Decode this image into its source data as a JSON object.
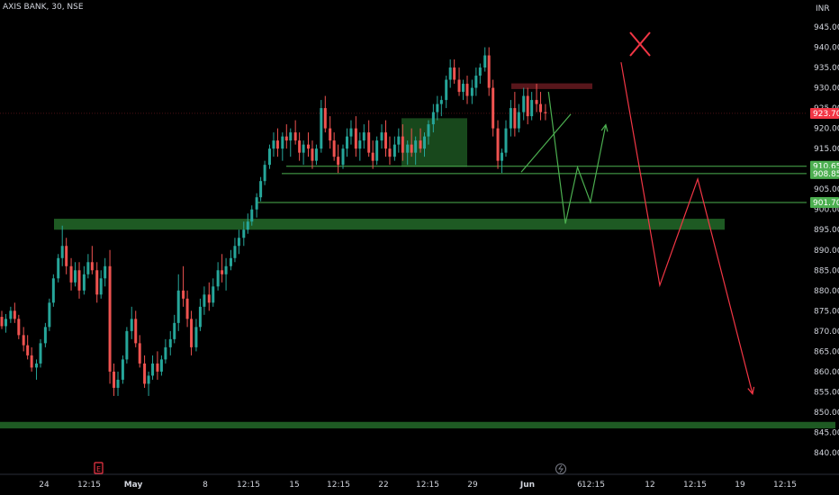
{
  "header": {
    "title": "AXIS BANK, 30, NSE"
  },
  "chart_data": {
    "type": "candlestick",
    "currency_label": "INR",
    "ylim": [
      840,
      947
    ],
    "y_ticks": [
      "945.00",
      "940.00",
      "935.00",
      "930.00",
      "925.00",
      "920.00",
      "915.00",
      "910.00",
      "905.00",
      "900.00",
      "895.00",
      "890.00",
      "885.00",
      "880.00",
      "875.00",
      "870.00",
      "865.00",
      "860.00",
      "855.00",
      "850.00",
      "845.00",
      "840.00"
    ],
    "x_ticks": [
      "24",
      "12:15",
      "May",
      "8",
      "12:15",
      "15",
      "12:15",
      "22",
      "12:15",
      "29",
      "Jun",
      "6",
      "12:15",
      "12",
      "12:15",
      "19",
      "12:15"
    ],
    "price_tags": [
      {
        "value": "923.70",
        "price": 923.7,
        "color": "#f23645"
      },
      {
        "value": "910.65",
        "price": 910.65,
        "color": "#4caf50"
      },
      {
        "value": "908.85",
        "price": 908.85,
        "color": "#4caf50"
      },
      {
        "value": "901.70",
        "price": 901.7,
        "color": "#4caf50"
      }
    ],
    "zones": [
      {
        "price_top": 897.7,
        "price_bottom": 895.0,
        "color": "#1e5a23"
      },
      {
        "price_top": 847.6,
        "price_bottom": 846.0,
        "color": "#1e5a23"
      },
      {
        "price_top": 922.5,
        "price_bottom": 910.5,
        "color": "#1e5a23"
      },
      {
        "price_top": 931.1,
        "price_bottom": 929.7,
        "color": "#6e1b22"
      }
    ],
    "series": [
      {
        "name": "",
        "color": "#4caf50",
        "path_prices": [
          929.0,
          896.5,
          910.4,
          901.8,
          920.9
        ],
        "path_x": [
          0.68,
          0.701,
          0.716,
          0.732,
          0.751
        ]
      },
      {
        "name": "",
        "color": "#f23645",
        "path_prices": [
          936.3,
          881.3,
          907.5,
          854.5
        ],
        "path_x": [
          0.77,
          0.818,
          0.865,
          0.933
        ]
      }
    ],
    "candles": [
      {
        "x": 0.0,
        "o": 873.5,
        "h": 875.0,
        "l": 870.5,
        "c": 871.2
      },
      {
        "x": 0.005,
        "o": 871.2,
        "h": 874.2,
        "l": 869.6,
        "c": 873.0
      },
      {
        "x": 0.011,
        "o": 873.0,
        "h": 876.0,
        "l": 872.0,
        "c": 875.0
      },
      {
        "x": 0.016,
        "o": 875.0,
        "h": 877.0,
        "l": 872.0,
        "c": 873.0
      },
      {
        "x": 0.021,
        "o": 873.0,
        "h": 874.0,
        "l": 868.0,
        "c": 869.0
      },
      {
        "x": 0.027,
        "o": 869.0,
        "h": 871.0,
        "l": 865.0,
        "c": 866.5
      },
      {
        "x": 0.032,
        "o": 866.5,
        "h": 869.0,
        "l": 863.0,
        "c": 864.0
      },
      {
        "x": 0.037,
        "o": 864.0,
        "h": 866.0,
        "l": 860.0,
        "c": 861.0
      },
      {
        "x": 0.043,
        "o": 861.0,
        "h": 863.0,
        "l": 858.0,
        "c": 862.0
      },
      {
        "x": 0.048,
        "o": 862.0,
        "h": 868.0,
        "l": 861.0,
        "c": 867.0
      },
      {
        "x": 0.054,
        "o": 867.0,
        "h": 872.0,
        "l": 866.0,
        "c": 871.0
      },
      {
        "x": 0.059,
        "o": 871.0,
        "h": 878.0,
        "l": 870.0,
        "c": 877.0
      },
      {
        "x": 0.064,
        "o": 877.0,
        "h": 884.0,
        "l": 876.0,
        "c": 883.0
      },
      {
        "x": 0.07,
        "o": 883.0,
        "h": 889.0,
        "l": 882.0,
        "c": 888.0
      },
      {
        "x": 0.075,
        "o": 888.0,
        "h": 896.0,
        "l": 886.0,
        "c": 891.0
      },
      {
        "x": 0.08,
        "o": 891.0,
        "h": 893.0,
        "l": 884.0,
        "c": 886.0
      },
      {
        "x": 0.086,
        "o": 886.0,
        "h": 888.0,
        "l": 880.0,
        "c": 882.0
      },
      {
        "x": 0.091,
        "o": 882.0,
        "h": 887.0,
        "l": 881.0,
        "c": 885.0
      },
      {
        "x": 0.096,
        "o": 885.0,
        "h": 887.0,
        "l": 878.0,
        "c": 880.0
      },
      {
        "x": 0.102,
        "o": 880.0,
        "h": 886.0,
        "l": 879.0,
        "c": 884.0
      },
      {
        "x": 0.107,
        "o": 884.0,
        "h": 889.0,
        "l": 883.0,
        "c": 887.0
      },
      {
        "x": 0.112,
        "o": 887.0,
        "h": 891.0,
        "l": 884.0,
        "c": 885.0
      },
      {
        "x": 0.118,
        "o": 885.0,
        "h": 887.0,
        "l": 877.0,
        "c": 879.0
      },
      {
        "x": 0.123,
        "o": 879.0,
        "h": 885.0,
        "l": 878.0,
        "c": 883.0
      },
      {
        "x": 0.128,
        "o": 883.0,
        "h": 888.0,
        "l": 881.0,
        "c": 886.0
      },
      {
        "x": 0.134,
        "o": 886.0,
        "h": 890.0,
        "l": 857.0,
        "c": 860.0
      },
      {
        "x": 0.139,
        "o": 860.0,
        "h": 862.0,
        "l": 854.0,
        "c": 856.0
      },
      {
        "x": 0.144,
        "o": 856.0,
        "h": 860.0,
        "l": 854.0,
        "c": 858.0
      },
      {
        "x": 0.15,
        "o": 858.0,
        "h": 864.0,
        "l": 857.0,
        "c": 863.0
      },
      {
        "x": 0.155,
        "o": 863.0,
        "h": 871.0,
        "l": 862.0,
        "c": 870.0
      },
      {
        "x": 0.161,
        "o": 870.0,
        "h": 876.0,
        "l": 868.0,
        "c": 873.0
      },
      {
        "x": 0.166,
        "o": 873.0,
        "h": 875.0,
        "l": 866.0,
        "c": 867.0
      },
      {
        "x": 0.171,
        "o": 867.0,
        "h": 869.0,
        "l": 861.0,
        "c": 862.0
      },
      {
        "x": 0.177,
        "o": 862.0,
        "h": 864.0,
        "l": 856.0,
        "c": 857.0
      },
      {
        "x": 0.182,
        "o": 857.0,
        "h": 860.0,
        "l": 854.0,
        "c": 859.0
      },
      {
        "x": 0.187,
        "o": 859.0,
        "h": 864.0,
        "l": 858.0,
        "c": 862.0
      },
      {
        "x": 0.193,
        "o": 862.0,
        "h": 865.0,
        "l": 858.0,
        "c": 860.0
      },
      {
        "x": 0.198,
        "o": 860.0,
        "h": 864.0,
        "l": 859.0,
        "c": 863.0
      },
      {
        "x": 0.203,
        "o": 863.0,
        "h": 868.0,
        "l": 862.0,
        "c": 866.0
      },
      {
        "x": 0.209,
        "o": 866.0,
        "h": 870.0,
        "l": 864.0,
        "c": 868.0
      },
      {
        "x": 0.214,
        "o": 868.0,
        "h": 874.0,
        "l": 867.0,
        "c": 872.0
      },
      {
        "x": 0.219,
        "o": 872.0,
        "h": 884.0,
        "l": 870.0,
        "c": 880.0
      },
      {
        "x": 0.225,
        "o": 880.0,
        "h": 886.0,
        "l": 876.0,
        "c": 878.0
      },
      {
        "x": 0.23,
        "o": 878.0,
        "h": 880.0,
        "l": 871.0,
        "c": 873.0
      },
      {
        "x": 0.235,
        "o": 873.0,
        "h": 875.0,
        "l": 864.0,
        "c": 866.0
      },
      {
        "x": 0.241,
        "o": 866.0,
        "h": 873.0,
        "l": 865.0,
        "c": 871.0
      },
      {
        "x": 0.246,
        "o": 871.0,
        "h": 878.0,
        "l": 870.0,
        "c": 876.0
      },
      {
        "x": 0.251,
        "o": 876.0,
        "h": 881.0,
        "l": 874.0,
        "c": 879.0
      },
      {
        "x": 0.257,
        "o": 879.0,
        "h": 882.0,
        "l": 875.0,
        "c": 877.0
      },
      {
        "x": 0.262,
        "o": 877.0,
        "h": 883.0,
        "l": 876.0,
        "c": 881.0
      },
      {
        "x": 0.268,
        "o": 881.0,
        "h": 887.0,
        "l": 880.0,
        "c": 885.0
      },
      {
        "x": 0.273,
        "o": 885.0,
        "h": 889.0,
        "l": 882.0,
        "c": 884.0
      },
      {
        "x": 0.278,
        "o": 884.0,
        "h": 888.0,
        "l": 880.0,
        "c": 886.0
      },
      {
        "x": 0.284,
        "o": 886.0,
        "h": 890.0,
        "l": 885.0,
        "c": 888.0
      },
      {
        "x": 0.289,
        "o": 888.0,
        "h": 893.0,
        "l": 887.0,
        "c": 891.0
      },
      {
        "x": 0.294,
        "o": 891.0,
        "h": 895.0,
        "l": 889.0,
        "c": 893.0
      },
      {
        "x": 0.3,
        "o": 893.0,
        "h": 897.0,
        "l": 891.0,
        "c": 895.0
      },
      {
        "x": 0.305,
        "o": 895.0,
        "h": 899.0,
        "l": 894.0,
        "c": 897.0
      },
      {
        "x": 0.31,
        "o": 897.0,
        "h": 901.0,
        "l": 896.0,
        "c": 900.0
      },
      {
        "x": 0.316,
        "o": 900.0,
        "h": 904.0,
        "l": 898.0,
        "c": 903.0
      },
      {
        "x": 0.321,
        "o": 903.0,
        "h": 908.0,
        "l": 902.0,
        "c": 907.0
      },
      {
        "x": 0.326,
        "o": 907.0,
        "h": 912.0,
        "l": 906.0,
        "c": 911.0
      },
      {
        "x": 0.332,
        "o": 911.0,
        "h": 916.0,
        "l": 910.0,
        "c": 915.0
      },
      {
        "x": 0.337,
        "o": 915.0,
        "h": 919.0,
        "l": 913.0,
        "c": 917.0
      },
      {
        "x": 0.342,
        "o": 917.0,
        "h": 920.0,
        "l": 913.0,
        "c": 915.0
      },
      {
        "x": 0.348,
        "o": 915.0,
        "h": 919.0,
        "l": 912.0,
        "c": 918.0
      },
      {
        "x": 0.353,
        "o": 918.0,
        "h": 921.0,
        "l": 915.0,
        "c": 917.0
      },
      {
        "x": 0.358,
        "o": 917.0,
        "h": 920.0,
        "l": 913.0,
        "c": 919.0
      },
      {
        "x": 0.364,
        "o": 919.0,
        "h": 922.0,
        "l": 916.0,
        "c": 917.0
      },
      {
        "x": 0.369,
        "o": 917.0,
        "h": 919.0,
        "l": 912.0,
        "c": 914.0
      },
      {
        "x": 0.374,
        "o": 914.0,
        "h": 917.0,
        "l": 911.0,
        "c": 916.0
      },
      {
        "x": 0.38,
        "o": 916.0,
        "h": 919.0,
        "l": 913.0,
        "c": 915.0
      },
      {
        "x": 0.385,
        "o": 915.0,
        "h": 917.0,
        "l": 910.0,
        "c": 912.0
      },
      {
        "x": 0.39,
        "o": 912.0,
        "h": 916.0,
        "l": 911.0,
        "c": 915.0
      },
      {
        "x": 0.396,
        "o": 915.0,
        "h": 927.0,
        "l": 914.0,
        "c": 925.0
      },
      {
        "x": 0.401,
        "o": 925.0,
        "h": 928.0,
        "l": 919.0,
        "c": 920.0
      },
      {
        "x": 0.407,
        "o": 920.0,
        "h": 923.0,
        "l": 915.0,
        "c": 917.0
      },
      {
        "x": 0.412,
        "o": 917.0,
        "h": 919.0,
        "l": 912.0,
        "c": 913.0
      },
      {
        "x": 0.417,
        "o": 913.0,
        "h": 916.0,
        "l": 909.0,
        "c": 911.0
      },
      {
        "x": 0.423,
        "o": 911.0,
        "h": 916.0,
        "l": 910.0,
        "c": 915.0
      },
      {
        "x": 0.428,
        "o": 915.0,
        "h": 920.0,
        "l": 913.0,
        "c": 918.0
      },
      {
        "x": 0.433,
        "o": 918.0,
        "h": 922.0,
        "l": 916.0,
        "c": 920.0
      },
      {
        "x": 0.439,
        "o": 920.0,
        "h": 923.0,
        "l": 913.0,
        "c": 915.0
      },
      {
        "x": 0.444,
        "o": 915.0,
        "h": 919.0,
        "l": 912.0,
        "c": 917.0
      },
      {
        "x": 0.449,
        "o": 917.0,
        "h": 921.0,
        "l": 915.0,
        "c": 919.0
      },
      {
        "x": 0.455,
        "o": 919.0,
        "h": 922.0,
        "l": 913.0,
        "c": 914.0
      },
      {
        "x": 0.46,
        "o": 914.0,
        "h": 917.0,
        "l": 910.0,
        "c": 912.0
      },
      {
        "x": 0.465,
        "o": 912.0,
        "h": 918.0,
        "l": 911.0,
        "c": 917.0
      },
      {
        "x": 0.471,
        "o": 917.0,
        "h": 921.0,
        "l": 915.0,
        "c": 919.0
      },
      {
        "x": 0.476,
        "o": 919.0,
        "h": 922.0,
        "l": 913.0,
        "c": 915.0
      },
      {
        "x": 0.481,
        "o": 915.0,
        "h": 918.0,
        "l": 911.0,
        "c": 913.0
      },
      {
        "x": 0.487,
        "o": 913.0,
        "h": 918.0,
        "l": 912.0,
        "c": 916.0
      },
      {
        "x": 0.492,
        "o": 916.0,
        "h": 920.0,
        "l": 914.0,
        "c": 918.0
      },
      {
        "x": 0.497,
        "o": 918.0,
        "h": 921.0,
        "l": 912.0,
        "c": 914.0
      },
      {
        "x": 0.503,
        "o": 914.0,
        "h": 917.0,
        "l": 911.0,
        "c": 916.0
      },
      {
        "x": 0.508,
        "o": 916.0,
        "h": 920.0,
        "l": 913.0,
        "c": 914.0
      },
      {
        "x": 0.513,
        "o": 914.0,
        "h": 918.0,
        "l": 911.0,
        "c": 917.0
      },
      {
        "x": 0.519,
        "o": 917.0,
        "h": 920.0,
        "l": 914.0,
        "c": 915.0
      },
      {
        "x": 0.524,
        "o": 915.0,
        "h": 919.0,
        "l": 913.0,
        "c": 918.0
      },
      {
        "x": 0.529,
        "o": 918.0,
        "h": 922.0,
        "l": 916.0,
        "c": 921.0
      },
      {
        "x": 0.535,
        "o": 921.0,
        "h": 926.0,
        "l": 919.0,
        "c": 924.0
      },
      {
        "x": 0.54,
        "o": 924.0,
        "h": 928.0,
        "l": 922.0,
        "c": 926.0
      },
      {
        "x": 0.545,
        "o": 926.0,
        "h": 928.0,
        "l": 923.0,
        "c": 927.0
      },
      {
        "x": 0.551,
        "o": 927.0,
        "h": 933.0,
        "l": 925.0,
        "c": 932.0
      },
      {
        "x": 0.556,
        "o": 932.0,
        "h": 937.0,
        "l": 930.0,
        "c": 935.0
      },
      {
        "x": 0.561,
        "o": 935.0,
        "h": 937.0,
        "l": 931.0,
        "c": 932.0
      },
      {
        "x": 0.567,
        "o": 932.0,
        "h": 935.0,
        "l": 928.0,
        "c": 929.0
      },
      {
        "x": 0.572,
        "o": 929.0,
        "h": 932.0,
        "l": 927.0,
        "c": 931.0
      },
      {
        "x": 0.577,
        "o": 931.0,
        "h": 933.0,
        "l": 926.0,
        "c": 928.0
      },
      {
        "x": 0.583,
        "o": 928.0,
        "h": 932.0,
        "l": 926.0,
        "c": 930.0
      },
      {
        "x": 0.588,
        "o": 930.0,
        "h": 935.0,
        "l": 928.0,
        "c": 933.0
      },
      {
        "x": 0.593,
        "o": 933.0,
        "h": 936.0,
        "l": 931.0,
        "c": 935.0
      },
      {
        "x": 0.599,
        "o": 935.0,
        "h": 940.0,
        "l": 934.0,
        "c": 938.0
      },
      {
        "x": 0.604,
        "o": 938.0,
        "h": 940.0,
        "l": 928.0,
        "c": 930.0
      },
      {
        "x": 0.609,
        "o": 930.0,
        "h": 932.0,
        "l": 918.0,
        "c": 920.0
      },
      {
        "x": 0.615,
        "o": 920.0,
        "h": 922.0,
        "l": 910.0,
        "c": 912.0
      },
      {
        "x": 0.62,
        "o": 912.0,
        "h": 915.0,
        "l": 909.0,
        "c": 914.0
      },
      {
        "x": 0.625,
        "o": 914.0,
        "h": 922.0,
        "l": 913.0,
        "c": 920.0
      },
      {
        "x": 0.631,
        "o": 920.0,
        "h": 927.0,
        "l": 918.0,
        "c": 925.0
      },
      {
        "x": 0.636,
        "o": 925.0,
        "h": 929.0,
        "l": 918.0,
        "c": 920.0
      },
      {
        "x": 0.641,
        "o": 920.0,
        "h": 926.0,
        "l": 919.0,
        "c": 924.0
      },
      {
        "x": 0.647,
        "o": 924.0,
        "h": 930.0,
        "l": 922.0,
        "c": 928.0
      },
      {
        "x": 0.652,
        "o": 928.0,
        "h": 930.0,
        "l": 921.0,
        "c": 923.0
      },
      {
        "x": 0.657,
        "o": 923.0,
        "h": 929.0,
        "l": 922.0,
        "c": 927.0
      },
      {
        "x": 0.663,
        "o": 927.0,
        "h": 931.0,
        "l": 924.0,
        "c": 926.0
      },
      {
        "x": 0.668,
        "o": 926.0,
        "h": 929.0,
        "l": 922.0,
        "c": 924.0
      },
      {
        "x": 0.674,
        "o": 924.0,
        "h": 926.0,
        "l": 922.0,
        "c": 923.7
      }
    ]
  }
}
